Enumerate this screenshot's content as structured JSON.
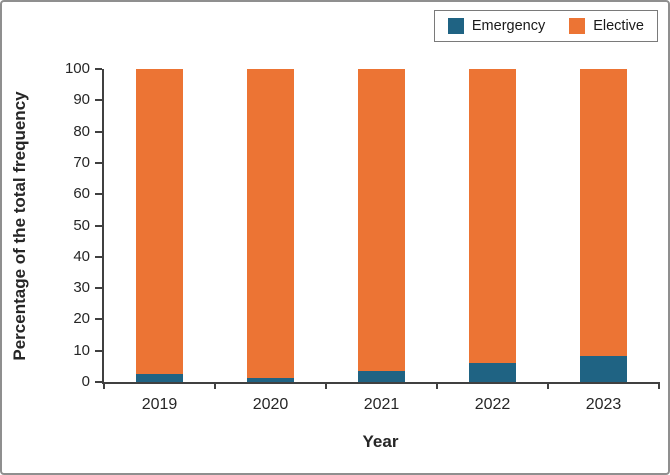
{
  "chart_data": {
    "type": "bar",
    "stacked": true,
    "title": "",
    "xlabel": "Year",
    "ylabel": "Percentage of the total frequency",
    "categories": [
      "2019",
      "2020",
      "2021",
      "2022",
      "2023"
    ],
    "series": [
      {
        "name": "Emergency",
        "color": "#1f6383",
        "values": [
          2.5,
          1.3,
          3.5,
          6.0,
          8.3
        ]
      },
      {
        "name": "Elective",
        "color": "#ec7434",
        "values": [
          97.5,
          98.7,
          96.5,
          94.0,
          91.7
        ]
      }
    ],
    "ylim": [
      0,
      100
    ],
    "yticks": [
      0,
      10,
      20,
      30,
      40,
      50,
      60,
      70,
      80,
      90,
      100
    ],
    "grid": false,
    "legend_position": "top-right"
  },
  "frame": {
    "border_color": "#8f8f8f",
    "axis_color": "#404040",
    "background": "#ffffff"
  }
}
